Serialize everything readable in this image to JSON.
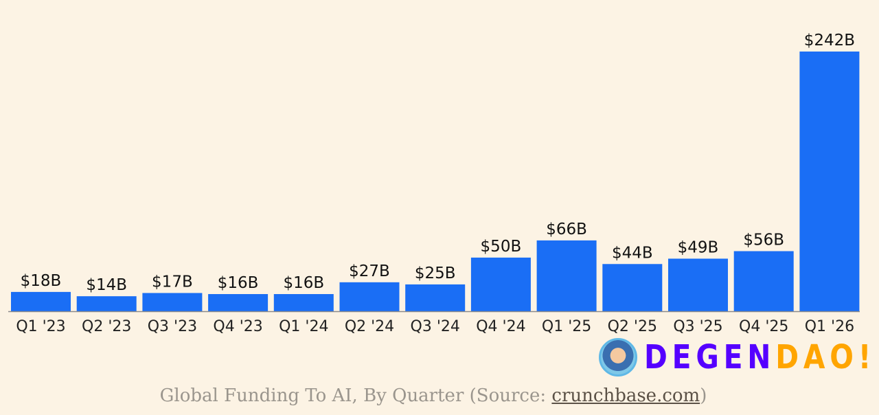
{
  "chart_data": {
    "type": "bar",
    "title": "",
    "xlabel": "",
    "ylabel": "",
    "categories": [
      "Q1 '23",
      "Q2 '23",
      "Q3 '23",
      "Q4 '23",
      "Q1 '24",
      "Q2 '24",
      "Q3 '24",
      "Q4 '24",
      "Q1 '25",
      "Q2 '25",
      "Q3 '25",
      "Q4 '25",
      "Q1 '26"
    ],
    "values": [
      18,
      14,
      17,
      16,
      16,
      27,
      25,
      50,
      66,
      44,
      49,
      56,
      242
    ],
    "data_labels": [
      "$18B",
      "$14B",
      "$17B",
      "$16B",
      "$16B",
      "$27B",
      "$25B",
      "$50B",
      "$66B",
      "$44B",
      "$49B",
      "$56B",
      "$242B"
    ],
    "unit": "billions USD",
    "ylim": [
      0,
      242
    ],
    "grid": false,
    "bar_color": "#1a6ef5"
  },
  "caption": {
    "prefix": "Global Funding To AI, By Quarter (Source: ",
    "link": "crunchbase.com",
    "suffix": ")"
  },
  "watermark": {
    "part1": "DEGEN",
    "part2": "DAO!"
  },
  "colors": {
    "background": "#fcf3e4",
    "watermark_primary": "#5500ff",
    "watermark_accent": "#ffa500"
  }
}
